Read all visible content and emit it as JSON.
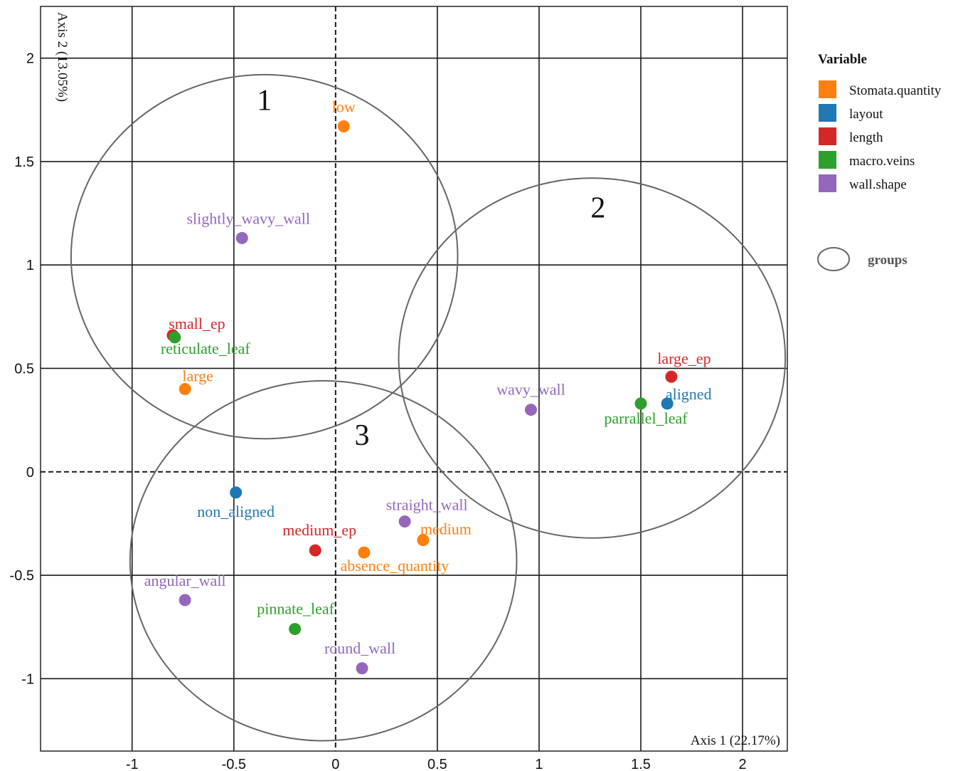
{
  "chart_data": {
    "type": "scatter",
    "xlabel": "Axis 1 (22.17%)",
    "ylabel": "Axis 2 (13.05%)",
    "xlim": [
      -1.45,
      2.22
    ],
    "ylim": [
      -1.35,
      2.25
    ],
    "x_ticks": [
      -1,
      -0.5,
      0,
      0.5,
      1,
      1.5,
      2
    ],
    "y_ticks": [
      -1,
      -0.5,
      0,
      0.5,
      1,
      1.5,
      2
    ],
    "x_tick_labels": [
      "-1",
      "-0.5",
      "0",
      "0.5",
      "1",
      "1.5",
      "2"
    ],
    "y_tick_labels": [
      "-1",
      "-0.5",
      "0",
      "0.5",
      "1",
      "1.5",
      "2"
    ],
    "grid": true,
    "legend": {
      "title": "Variable",
      "placement": "right",
      "groups_label": "groups"
    },
    "series": [
      {
        "name": "Stomata.quantity",
        "color": "#ff7f0e",
        "points": [
          {
            "label": "low",
            "x": 0.04,
            "y": 1.67
          },
          {
            "label": "large",
            "x": -0.74,
            "y": 0.4
          },
          {
            "label": "medium",
            "x": 0.43,
            "y": -0.33
          },
          {
            "label": "absence_quantity",
            "x": 0.14,
            "y": -0.39
          }
        ]
      },
      {
        "name": "layout",
        "color": "#1f77b4",
        "points": [
          {
            "label": "aligned",
            "x": 1.63,
            "y": 0.33
          },
          {
            "label": "non_aligned",
            "x": -0.49,
            "y": -0.1
          }
        ]
      },
      {
        "name": "length",
        "color": "#d62728",
        "points": [
          {
            "label": "small_ep",
            "x": -0.8,
            "y": 0.66
          },
          {
            "label": "large_ep",
            "x": 1.65,
            "y": 0.46
          },
          {
            "label": "medium_ep",
            "x": -0.1,
            "y": -0.38
          }
        ]
      },
      {
        "name": "macro.veins",
        "color": "#2ca02c",
        "points": [
          {
            "label": "reticulate_leaf",
            "x": -0.79,
            "y": 0.65
          },
          {
            "label": "parrallel_leaf",
            "x": 1.5,
            "y": 0.33
          },
          {
            "label": "pinnate_leaf",
            "x": -0.2,
            "y": -0.76
          }
        ]
      },
      {
        "name": "wall.shape",
        "color": "#9467bd",
        "points": [
          {
            "label": "slightly_wavy_wall",
            "x": -0.46,
            "y": 1.13
          },
          {
            "label": "wavy_wall",
            "x": 0.96,
            "y": 0.3
          },
          {
            "label": "straight_wall",
            "x": 0.34,
            "y": -0.24
          },
          {
            "label": "angular_wall",
            "x": -0.74,
            "y": -0.62
          },
          {
            "label": "round_wall",
            "x": 0.13,
            "y": -0.95
          }
        ]
      }
    ],
    "groups": [
      {
        "label": "1",
        "cx": -0.35,
        "cy": 1.04,
        "rx": 0.95,
        "ry": 0.88
      },
      {
        "label": "2",
        "cx": 1.26,
        "cy": 0.55,
        "rx": 0.95,
        "ry": 0.87
      },
      {
        "label": "3",
        "cx": -0.06,
        "cy": -0.43,
        "rx": 0.95,
        "ry": 0.87
      }
    ]
  }
}
